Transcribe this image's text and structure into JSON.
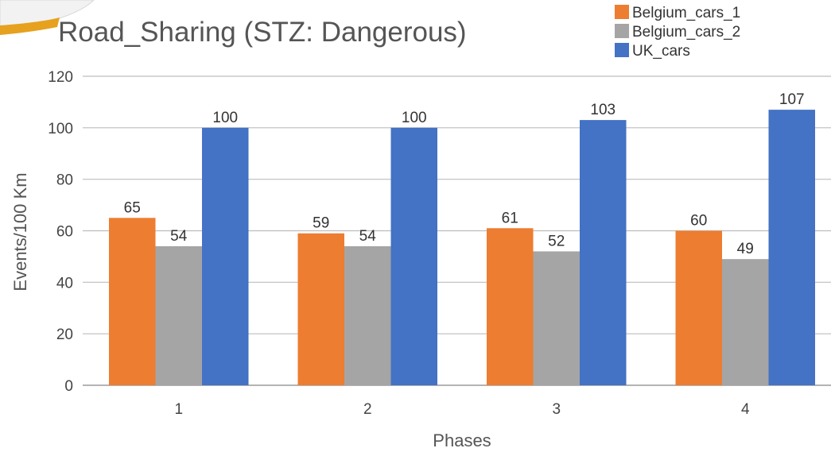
{
  "chart_data": {
    "type": "bar",
    "title": "Road_Sharing (STZ: Dangerous)",
    "xlabel": "Phases",
    "ylabel": "Events/100 Km",
    "categories": [
      "1",
      "2",
      "3",
      "4"
    ],
    "series": [
      {
        "name": "Belgium_cars_1",
        "values": [
          65,
          59,
          61,
          60
        ],
        "color": "#ED7D31"
      },
      {
        "name": "Belgium_cars_2",
        "values": [
          54,
          54,
          52,
          49
        ],
        "color": "#A5A5A5"
      },
      {
        "name": "UK_cars",
        "values": [
          100,
          100,
          103,
          107
        ],
        "color": "#4472C4"
      }
    ],
    "ylim": [
      0,
      120
    ],
    "yticks": [
      0,
      20,
      40,
      60,
      80,
      100,
      120
    ],
    "grid": true,
    "legend_position": "top-right",
    "data_labels": true
  }
}
